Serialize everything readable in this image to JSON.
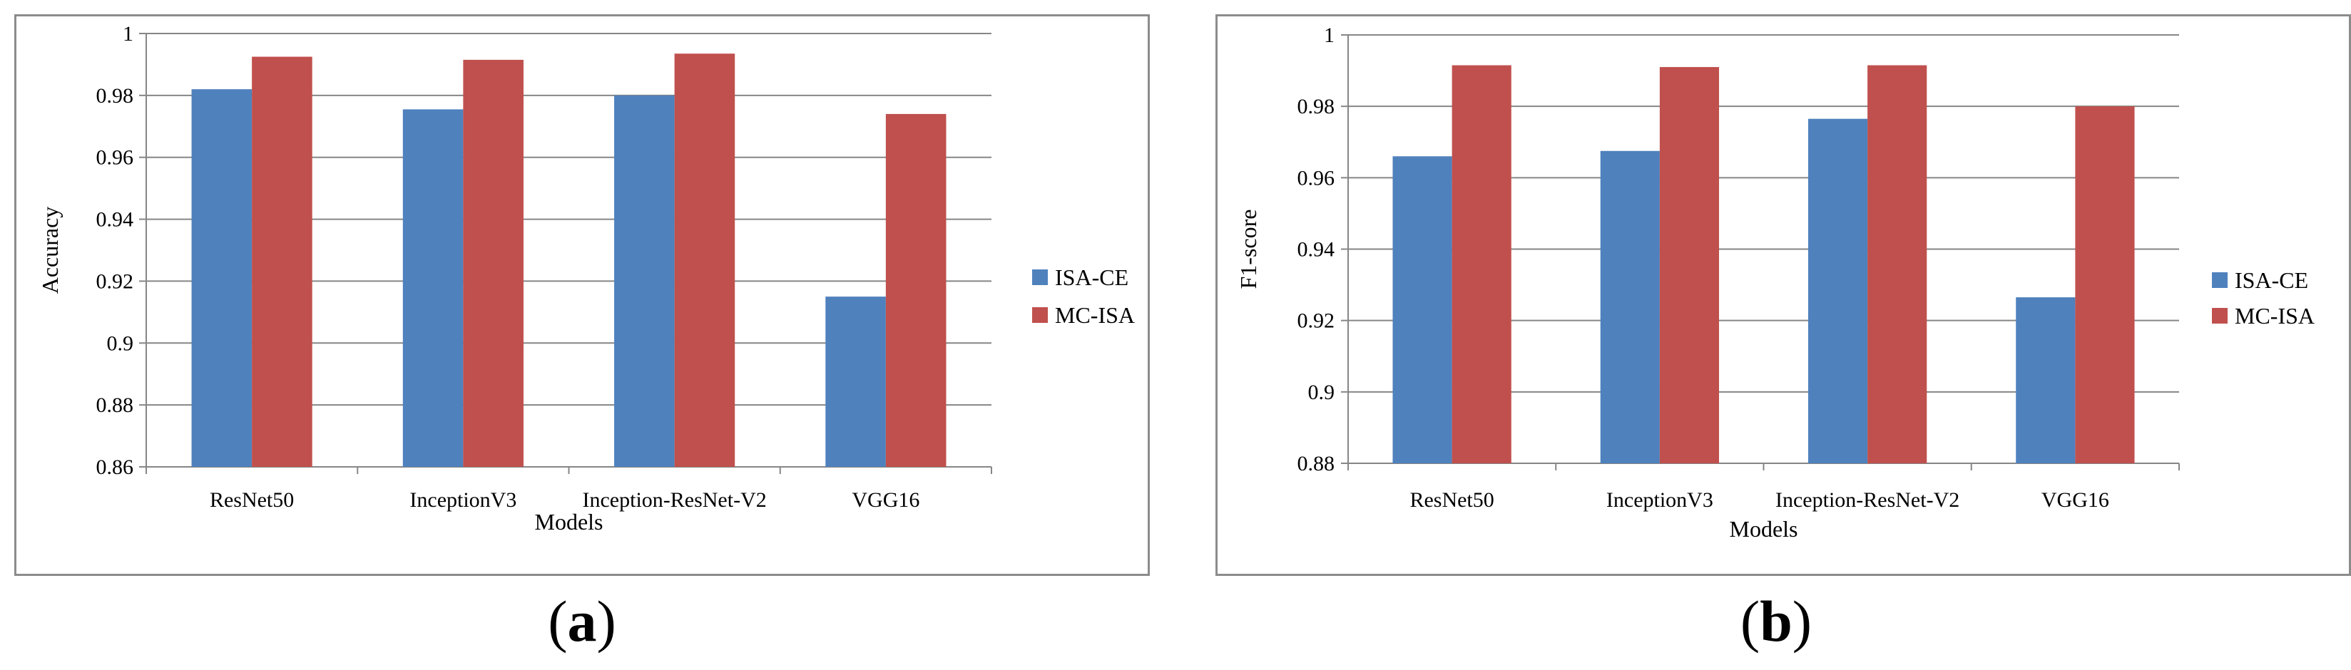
{
  "colors": {
    "isa_ce": "#4f81bd",
    "mc_isa": "#c0504d",
    "grid": "#868686",
    "axis": "#868686"
  },
  "captions": {
    "a_open": "(",
    "a_letter": "a",
    "a_close": ")",
    "b_open": "(",
    "b_letter": "b",
    "b_close": ")"
  },
  "chart_data": [
    {
      "type": "bar",
      "panel": "a",
      "title": "",
      "categories": [
        "ResNet50",
        "InceptionV3",
        "Inception-ResNet-V2",
        "VGG16"
      ],
      "series": [
        {
          "name": "ISA-CE",
          "values": [
            0.982,
            0.9755,
            0.98,
            0.915
          ]
        },
        {
          "name": "MC-ISA",
          "values": [
            0.9925,
            0.9915,
            0.9935,
            0.974
          ]
        }
      ],
      "xlabel": "Models",
      "ylabel": "Accuracy",
      "ylim": [
        0.86,
        1.0
      ],
      "yticks": [
        0.86,
        0.88,
        0.9,
        0.92,
        0.94,
        0.96,
        0.98,
        1.0
      ],
      "ytick_labels": [
        "0.86",
        "0.88",
        "0.9",
        "0.92",
        "0.94",
        "0.96",
        "0.98",
        "1"
      ],
      "grid": true,
      "legend_position": "right"
    },
    {
      "type": "bar",
      "panel": "b",
      "title": "",
      "categories": [
        "ResNet50",
        "InceptionV3",
        "Inception-ResNet-V2",
        "VGG16"
      ],
      "series": [
        {
          "name": "ISA-CE",
          "values": [
            0.966,
            0.9675,
            0.9765,
            0.9265
          ]
        },
        {
          "name": "MC-ISA",
          "values": [
            0.9915,
            0.991,
            0.9915,
            0.98
          ]
        }
      ],
      "xlabel": "Models",
      "ylabel": "F1-score",
      "ylim": [
        0.88,
        1.0
      ],
      "yticks": [
        0.88,
        0.9,
        0.92,
        0.94,
        0.96,
        0.98,
        1.0
      ],
      "ytick_labels": [
        "0.88",
        "0.9",
        "0.92",
        "0.94",
        "0.96",
        "0.98",
        "1"
      ],
      "grid": true,
      "legend_position": "right"
    }
  ]
}
